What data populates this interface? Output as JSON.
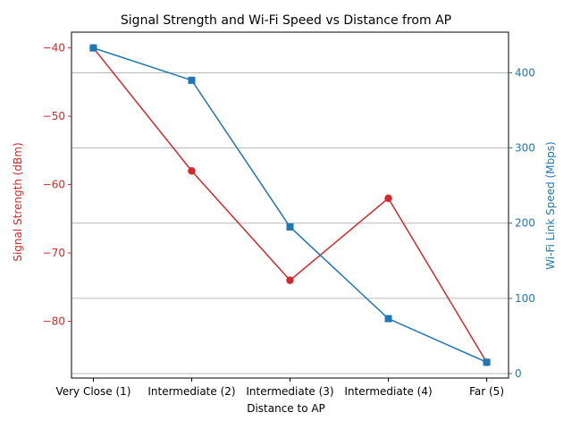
{
  "chart_data": {
    "type": "line",
    "title": "Signal Strength and Wi-Fi Speed vs Distance from AP",
    "xlabel": "Distance to AP",
    "categories": [
      "Very Close (1)",
      "Intermediate (2)",
      "Intermediate (3)",
      "Intermediate (4)",
      "Far (5)"
    ],
    "y_left": {
      "label": "Signal Strength (dBm)",
      "ticks": [
        -80,
        -70,
        -60,
        -50,
        -40
      ],
      "range": [
        -88.3,
        -37.7
      ],
      "color": "#d62728"
    },
    "y_right": {
      "label": "Wi-Fi Link Speed (Mbps)",
      "ticks": [
        0,
        100,
        200,
        300,
        400
      ],
      "range": [
        -6,
        454
      ],
      "color": "#1f77b4"
    },
    "series": [
      {
        "axis": "left",
        "color": "#d62728",
        "marker": "circle",
        "values": [
          -40,
          -58,
          -74,
          -62,
          -86
        ]
      },
      {
        "axis": "right",
        "color": "#1f77b4",
        "marker": "square",
        "values": [
          433,
          390,
          195,
          73,
          15
        ]
      }
    ],
    "grid": "horizontal (right axis)",
    "legend": "none"
  }
}
